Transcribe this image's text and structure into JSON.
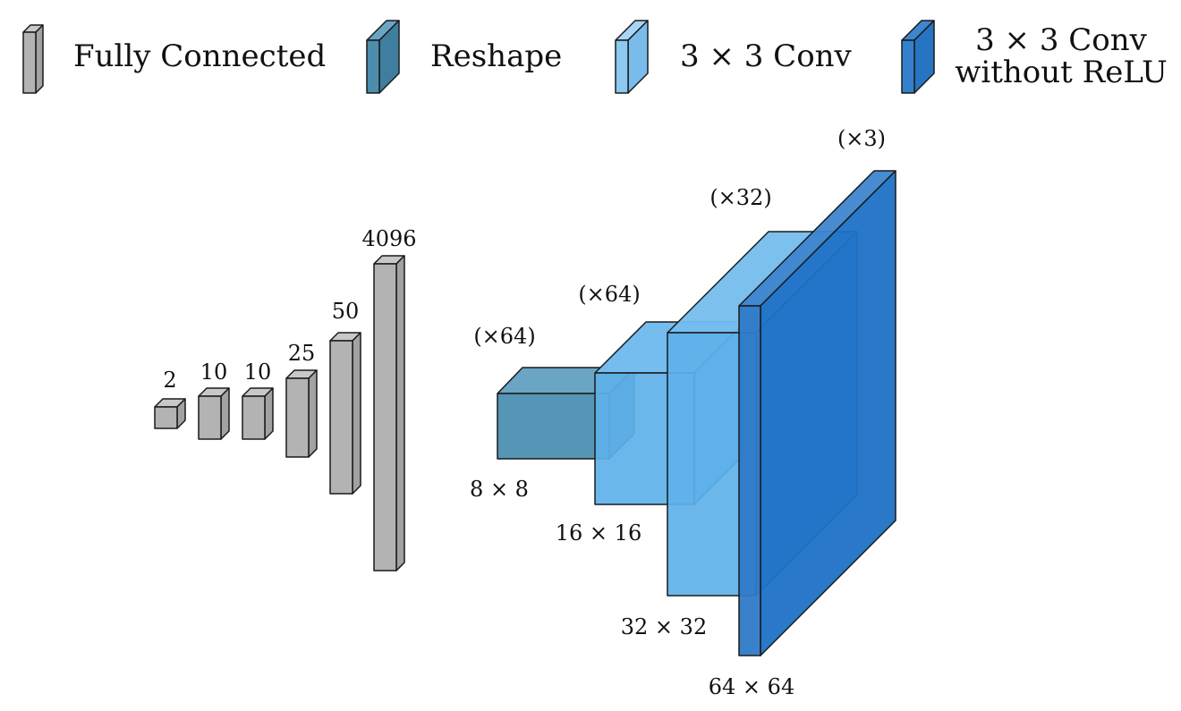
{
  "legend": [
    {
      "id": "fc",
      "label": "Fully Connected",
      "color": "#b3b3b3"
    },
    {
      "id": "reshape",
      "label": "Reshape",
      "color": "#5596b6"
    },
    {
      "id": "conv",
      "label": "3 × 3 Conv",
      "color": "#86c3ee"
    },
    {
      "id": "conv-norelu",
      "label_line1": "3 × 3 Conv",
      "label_line2": "without ReLU",
      "color": "#2c7ac8"
    }
  ],
  "fc_layers": [
    {
      "label": "2"
    },
    {
      "label": "10"
    },
    {
      "label": "10"
    },
    {
      "label": "25"
    },
    {
      "label": "50"
    },
    {
      "label": "4096"
    }
  ],
  "conv_blocks": [
    {
      "channels": "(×64)",
      "size": "8 × 8",
      "type": "reshape"
    },
    {
      "channels": "(×64)",
      "size": "16 × 16",
      "type": "conv"
    },
    {
      "channels": "(×32)",
      "size": "32 × 32",
      "type": "conv"
    },
    {
      "channels": "(×3)",
      "size": "64 × 64",
      "type": "conv-norelu"
    }
  ],
  "colors": {
    "fc_front": "#b3b3b3",
    "fc_side": "#a2a2a2",
    "fc_top": "#c8c8c8",
    "reshape_front": "#5596b6",
    "reshape_top": "#6aa5c3",
    "conv_front": "#5eb1ea",
    "conv_top": "#75bdee",
    "final_front": "#2f7ac8",
    "final_side": "#2777c7",
    "final_top": "#3d86cf"
  }
}
